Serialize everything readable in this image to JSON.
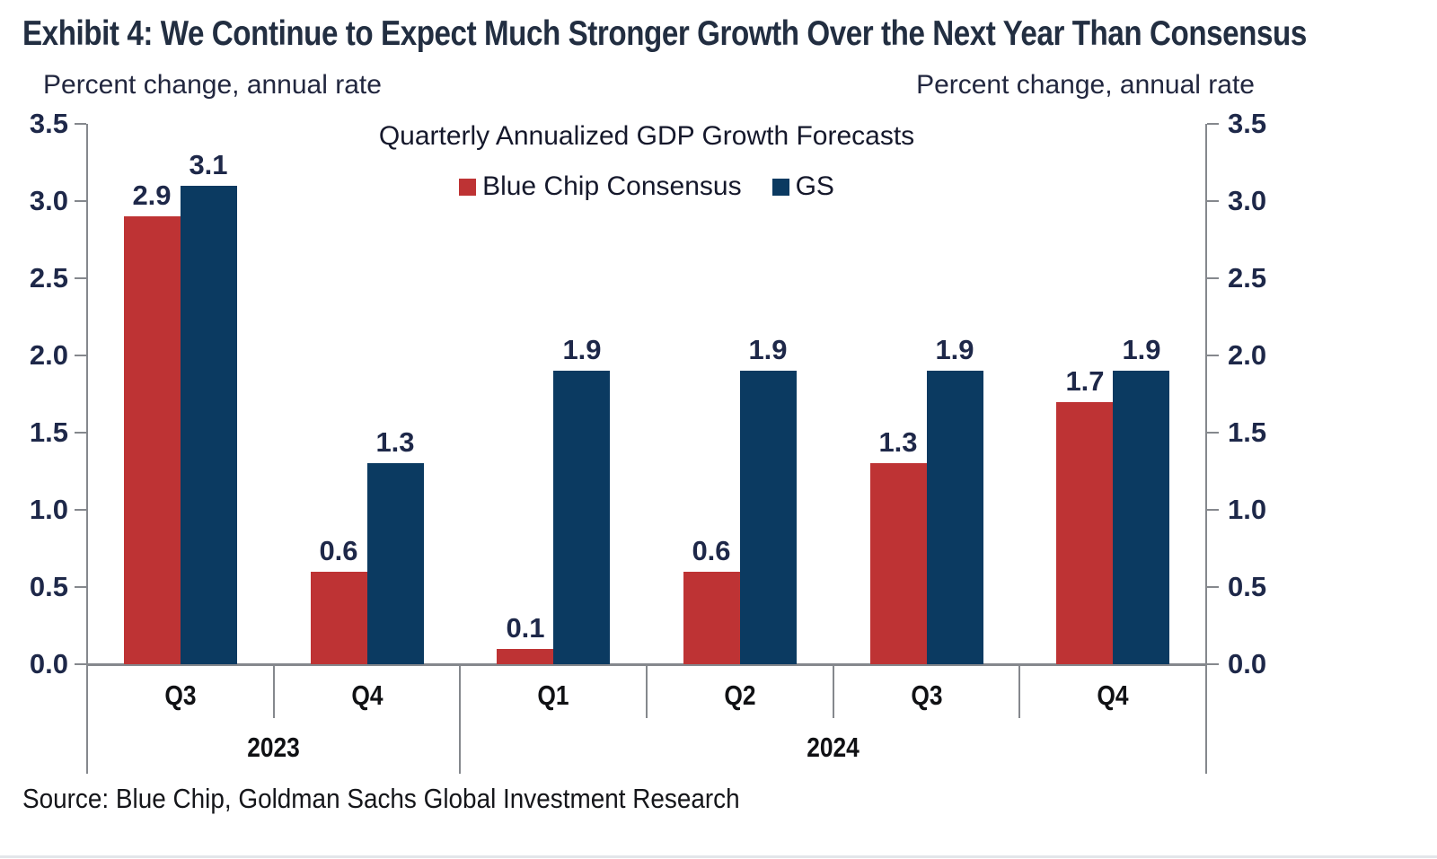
{
  "header": {
    "title": "Exhibit 4: We Continue to Expect Much Stronger Growth Over the Next Year Than Consensus"
  },
  "axis_notes": {
    "left": "Percent change, annual rate",
    "right": "Percent change, annual rate"
  },
  "chart_data": {
    "type": "bar",
    "title": "Quarterly Annualized GDP Growth Forecasts",
    "categories": [
      "Q3",
      "Q4",
      "Q1",
      "Q2",
      "Q3",
      "Q4"
    ],
    "year_groups": [
      {
        "label": "2023",
        "span": 2
      },
      {
        "label": "2024",
        "span": 4
      }
    ],
    "series": [
      {
        "name": "Blue Chip Consensus",
        "color": "#be3334",
        "values": [
          2.9,
          0.6,
          0.1,
          0.6,
          1.3,
          1.7
        ]
      },
      {
        "name": "GS",
        "color": "#0b3a61",
        "values": [
          3.1,
          1.3,
          1.9,
          1.9,
          1.9,
          1.9
        ]
      }
    ],
    "ylim": [
      0,
      3.5
    ],
    "ytick_step": 0.5,
    "yticks": [
      "0.0",
      "0.5",
      "1.0",
      "1.5",
      "2.0",
      "2.5",
      "3.0",
      "3.5"
    ],
    "grid": false,
    "value_labels": true,
    "legend_position": "top-center",
    "dual_axis": true
  },
  "footer": {
    "source": "Source: Blue Chip, Goldman Sachs Global Investment Research"
  },
  "colors": {
    "blue_chip_red": "#be3334",
    "gs_navy": "#0b3a61",
    "axis_line_gray": "#85888d",
    "value_label_navy": "#1e2849",
    "title_navy": "#222e41"
  }
}
